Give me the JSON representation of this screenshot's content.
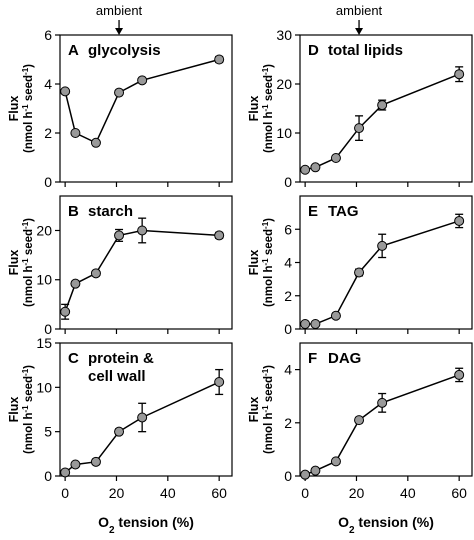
{
  "figure": {
    "annotation": "ambient",
    "annotation_x": 21,
    "x_axis_label_parts": [
      "O",
      "2",
      " tension (%)"
    ],
    "y_axis_label": "Flux",
    "y_axis_unit_parts": [
      "(nmol h",
      "-1",
      " seed",
      "-1",
      ")"
    ],
    "x_ticks": [
      0,
      20,
      40,
      60
    ],
    "xlim": [
      -2,
      65
    ],
    "marker_color": "#999999",
    "line_color": "#000000"
  },
  "chart_data": [
    {
      "type": "line",
      "panel": "A",
      "title": "glycolysis",
      "x": [
        0,
        4,
        12,
        21,
        30,
        60
      ],
      "y": [
        3.7,
        2.0,
        1.6,
        3.65,
        4.15,
        5.0
      ],
      "err": [
        0.05,
        0.05,
        0.05,
        0.05,
        0.05,
        0.12
      ],
      "ylim": [
        0,
        6
      ],
      "yticks": [
        0,
        2,
        4,
        6
      ],
      "grid": false
    },
    {
      "type": "line",
      "panel": "B",
      "title": "starch",
      "x": [
        0,
        4,
        12,
        21,
        30,
        60
      ],
      "y": [
        3.5,
        9.2,
        11.3,
        19.0,
        20.0,
        19.0
      ],
      "err": [
        1.5,
        0.5,
        0.5,
        1.2,
        2.5,
        0.6
      ],
      "ylim": [
        0,
        27
      ],
      "yticks": [
        0,
        10,
        20
      ],
      "grid": false
    },
    {
      "type": "line",
      "panel": "C",
      "title": "protein & cell wall",
      "title_lines": [
        "protein &",
        "cell wall"
      ],
      "x": [
        0,
        4,
        12,
        21,
        30,
        60
      ],
      "y": [
        0.4,
        1.3,
        1.6,
        5.0,
        6.6,
        10.6
      ],
      "err": [
        0.15,
        0.2,
        0.3,
        0.3,
        1.6,
        1.4
      ],
      "ylim": [
        0,
        15
      ],
      "yticks": [
        0,
        5,
        10,
        15
      ],
      "grid": false
    },
    {
      "type": "line",
      "panel": "D",
      "title": "total lipids",
      "x": [
        0,
        4,
        12,
        21,
        30,
        60
      ],
      "y": [
        2.5,
        3.0,
        4.9,
        11.0,
        15.7,
        22.0
      ],
      "err": [
        0.3,
        0.3,
        0.4,
        2.5,
        1.0,
        1.5
      ],
      "ylim": [
        0,
        30
      ],
      "yticks": [
        0,
        10,
        20,
        30
      ],
      "grid": false
    },
    {
      "type": "line",
      "panel": "E",
      "title": "TAG",
      "x": [
        0,
        4,
        12,
        21,
        30,
        60
      ],
      "y": [
        0.3,
        0.3,
        0.8,
        3.4,
        5.0,
        6.5
      ],
      "err": [
        0.05,
        0.05,
        0.1,
        0.2,
        0.7,
        0.4
      ],
      "ylim": [
        0,
        8
      ],
      "yticks": [
        0,
        2,
        4,
        6
      ],
      "grid": false
    },
    {
      "type": "line",
      "panel": "F",
      "title": "DAG",
      "x": [
        0,
        4,
        12,
        21,
        30,
        60
      ],
      "y": [
        0.05,
        0.2,
        0.55,
        2.1,
        2.75,
        3.8
      ],
      "err": [
        0.03,
        0.03,
        0.05,
        0.1,
        0.35,
        0.25
      ],
      "ylim": [
        0,
        5
      ],
      "yticks": [
        0,
        2,
        4
      ],
      "grid": false
    }
  ]
}
